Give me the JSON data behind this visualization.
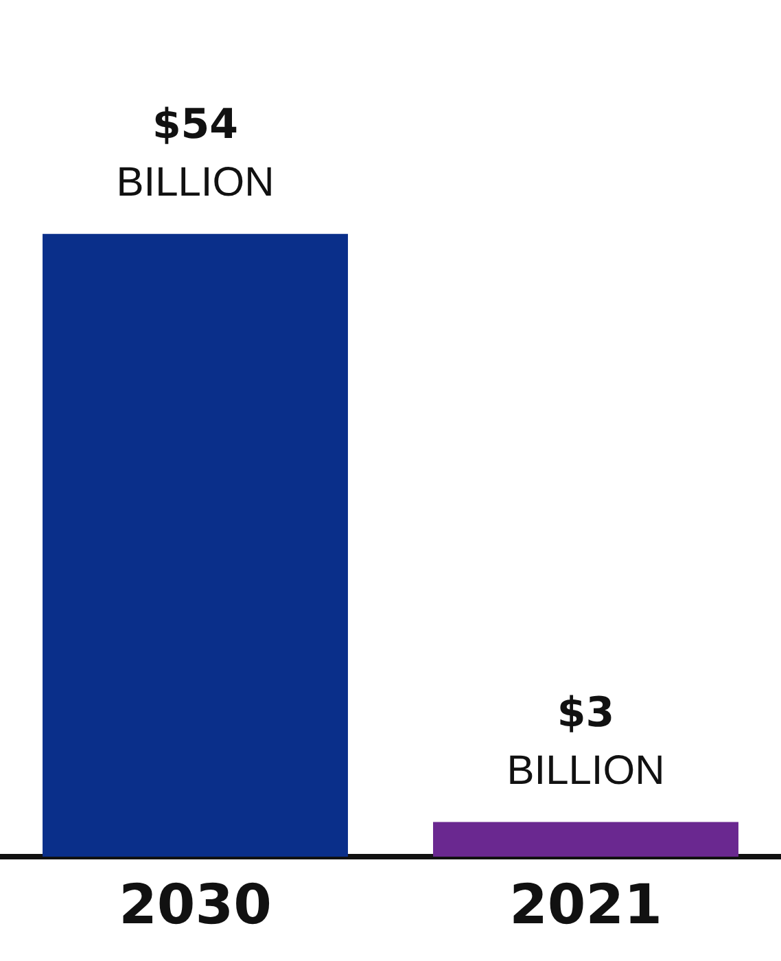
{
  "chart_data": {
    "type": "bar",
    "categories": [
      "2030",
      "2021"
    ],
    "values": [
      54,
      3
    ],
    "colors": [
      "#0a2f8a",
      "#6a2890"
    ],
    "value_labels": [
      "$54 BILLION",
      "$3 BILLION"
    ],
    "grid": false,
    "legend": false
  }
}
